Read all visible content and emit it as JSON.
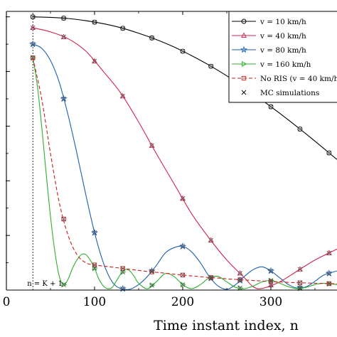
{
  "chart_data": {
    "type": "line",
    "xlabel": "Time instant index, n",
    "ylabel": "",
    "xlim": [
      0,
      375
    ],
    "ylim": [
      0,
      1.02
    ],
    "x_ticks": [
      0,
      100,
      200,
      300
    ],
    "x_tick_labels": [
      "0",
      "100",
      "200",
      "300"
    ],
    "grid": false,
    "legend_position": "top-right",
    "annotation": {
      "text": "n = K + 1",
      "x": 30
    },
    "series": [
      {
        "name": "v = 10 km/h",
        "color": "#000000",
        "marker": "circle",
        "dashed": false,
        "x": [
          30,
          50,
          70,
          90,
          110,
          130,
          150,
          170,
          190,
          210,
          230,
          250,
          270,
          290,
          310,
          330,
          350,
          375
        ],
        "y": [
          1.0,
          0.998,
          0.994,
          0.986,
          0.975,
          0.96,
          0.94,
          0.917,
          0.89,
          0.858,
          0.823,
          0.784,
          0.741,
          0.695,
          0.647,
          0.597,
          0.545,
          0.478
        ],
        "marker_x": [
          30,
          65,
          100,
          132,
          165,
          200,
          232,
          265,
          300,
          333,
          366
        ]
      },
      {
        "name": "v = 40 km/h",
        "color": "#d0244c",
        "marker": "triangle-up",
        "dashed": false,
        "x": [
          30,
          50,
          70,
          90,
          110,
          130,
          150,
          170,
          190,
          210,
          230,
          250,
          270,
          280,
          290,
          310,
          330,
          350,
          375
        ],
        "y": [
          0.96,
          0.945,
          0.92,
          0.875,
          0.8,
          0.72,
          0.615,
          0.5,
          0.39,
          0.28,
          0.19,
          0.11,
          0.045,
          0.012,
          0.006,
          0.03,
          0.07,
          0.11,
          0.15
        ],
        "marker_x": [
          30,
          65,
          100,
          132,
          165,
          200,
          232,
          265,
          300,
          333,
          366
        ]
      },
      {
        "name": "v = 80 km/h",
        "color": "#1f5fb0",
        "marker": "star",
        "dashed": false,
        "x": [
          30,
          40,
          50,
          60,
          70,
          80,
          90,
          100,
          110,
          120,
          130,
          140,
          150,
          160,
          170,
          180,
          190,
          200,
          210,
          220,
          230,
          240,
          250,
          260,
          270,
          280,
          290,
          300,
          310,
          320,
          330,
          340,
          350,
          360,
          375
        ],
        "y": [
          0.9,
          0.885,
          0.84,
          0.76,
          0.64,
          0.5,
          0.35,
          0.21,
          0.1,
          0.03,
          0.005,
          0.003,
          0.02,
          0.05,
          0.09,
          0.135,
          0.155,
          0.16,
          0.14,
          0.1,
          0.05,
          0.015,
          0.003,
          0.02,
          0.05,
          0.075,
          0.085,
          0.07,
          0.045,
          0.02,
          0.007,
          0.012,
          0.032,
          0.055,
          0.07
        ],
        "marker_x": [
          30,
          65,
          100,
          132,
          165,
          200,
          232,
          265,
          300,
          333,
          366
        ]
      },
      {
        "name": "v = 160 km/h",
        "color": "#2fae2f",
        "marker": "triangle-right",
        "dashed": false,
        "x": [
          30,
          35,
          40,
          45,
          50,
          55,
          60,
          65,
          70,
          75,
          80,
          85,
          90,
          95,
          100,
          105,
          110,
          115,
          120,
          125,
          130,
          135,
          140,
          145,
          150,
          160,
          170,
          180,
          190,
          200,
          210,
          220,
          230,
          240,
          250,
          260,
          270,
          280,
          290,
          300,
          310,
          320,
          330,
          340,
          350,
          360,
          375
        ],
        "y": [
          0.85,
          0.75,
          0.6,
          0.43,
          0.27,
          0.14,
          0.05,
          0.02,
          0.04,
          0.08,
          0.11,
          0.13,
          0.13,
          0.11,
          0.08,
          0.04,
          0.015,
          0.005,
          0.01,
          0.035,
          0.06,
          0.075,
          0.07,
          0.05,
          0.025,
          0.005,
          0.03,
          0.06,
          0.05,
          0.02,
          0.005,
          0.02,
          0.045,
          0.05,
          0.03,
          0.01,
          0.005,
          0.015,
          0.03,
          0.035,
          0.025,
          0.012,
          0.005,
          0.01,
          0.02,
          0.025,
          0.02
        ],
        "marker_x": [
          30,
          65,
          100,
          132,
          165,
          200,
          232,
          265,
          300,
          333,
          366
        ]
      },
      {
        "name": "No RIS (v = 40 km/h)",
        "color": "#c81e1e",
        "marker": "square",
        "dashed": true,
        "x": [
          30,
          40,
          50,
          60,
          70,
          80,
          90,
          100,
          110,
          120,
          130,
          140,
          150,
          160,
          170,
          180,
          190,
          200,
          210,
          220,
          230,
          240,
          250,
          260,
          270,
          280,
          290,
          300,
          310,
          320,
          330,
          340,
          350,
          360,
          375
        ],
        "y": [
          0.85,
          0.7,
          0.5,
          0.32,
          0.2,
          0.13,
          0.1,
          0.092,
          0.088,
          0.084,
          0.08,
          0.076,
          0.072,
          0.068,
          0.065,
          0.062,
          0.058,
          0.055,
          0.052,
          0.049,
          0.046,
          0.044,
          0.041,
          0.039,
          0.037,
          0.035,
          0.033,
          0.031,
          0.03,
          0.028,
          0.027,
          0.026,
          0.025,
          0.024,
          0.023
        ],
        "marker_x": [
          30,
          65,
          100,
          132,
          165,
          200,
          232,
          265,
          300,
          333,
          366
        ]
      }
    ],
    "mc_simulations": {
      "name": "MC simulations",
      "x": [
        30,
        65,
        100,
        132,
        165,
        200,
        232,
        265,
        300,
        333,
        366
      ]
    }
  }
}
